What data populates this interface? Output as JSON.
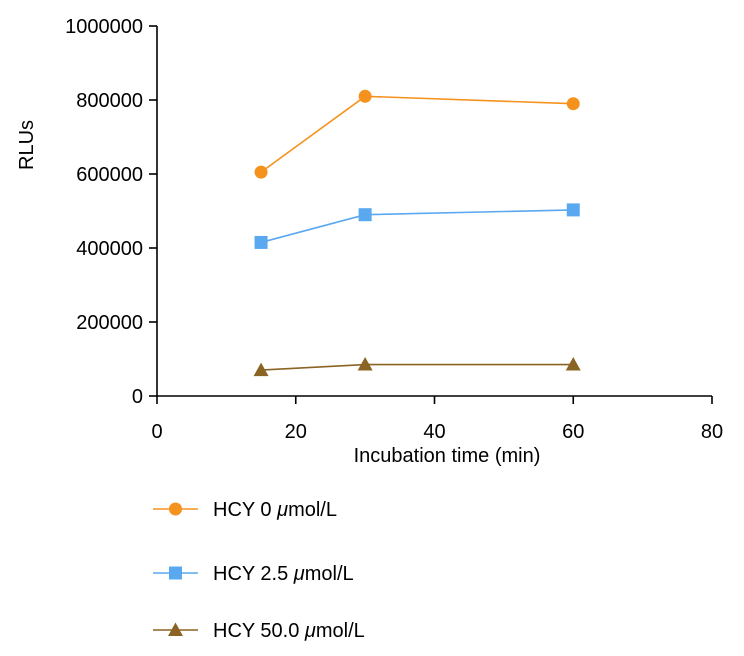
{
  "chart_data": {
    "type": "line",
    "title": "",
    "xlabel": "Incubation time (min)",
    "ylabel": "RLUs",
    "xlim": [
      0,
      80
    ],
    "ylim": [
      0,
      1000000
    ],
    "x_ticks": [
      0,
      20,
      40,
      60,
      80
    ],
    "y_ticks": [
      0,
      200000,
      400000,
      600000,
      800000,
      1000000
    ],
    "x_tick_labels": [
      "0",
      "20",
      "40",
      "60",
      "80"
    ],
    "y_tick_labels": [
      "0",
      "200000",
      "400000",
      "600000",
      "800000",
      "1000000"
    ],
    "grid": false,
    "legend_position": "bottom",
    "series": [
      {
        "name": "HCY 0 μmol/L",
        "legend_prefix": "HCY 0 ",
        "legend_unit_mu": "μ",
        "legend_suffix": "mol/L",
        "color": "#F5921E",
        "marker": "circle",
        "x": [
          15,
          30,
          60
        ],
        "y": [
          605000,
          810000,
          790000
        ]
      },
      {
        "name": "HCY 2.5 μmol/L",
        "legend_prefix": "HCY 2.5 ",
        "legend_unit_mu": "μ",
        "legend_suffix": "mol/L",
        "color": "#5AA8F0",
        "marker": "square",
        "x": [
          15,
          30,
          60
        ],
        "y": [
          415000,
          490000,
          503000
        ]
      },
      {
        "name": "HCY 50.0 μmol/L",
        "legend_prefix": "HCY 50.0 ",
        "legend_unit_mu": "μ",
        "legend_suffix": "mol/L",
        "color": "#8B6424",
        "marker": "triangle",
        "x": [
          15,
          30,
          60
        ],
        "y": [
          70000,
          85000,
          85000
        ]
      }
    ]
  }
}
